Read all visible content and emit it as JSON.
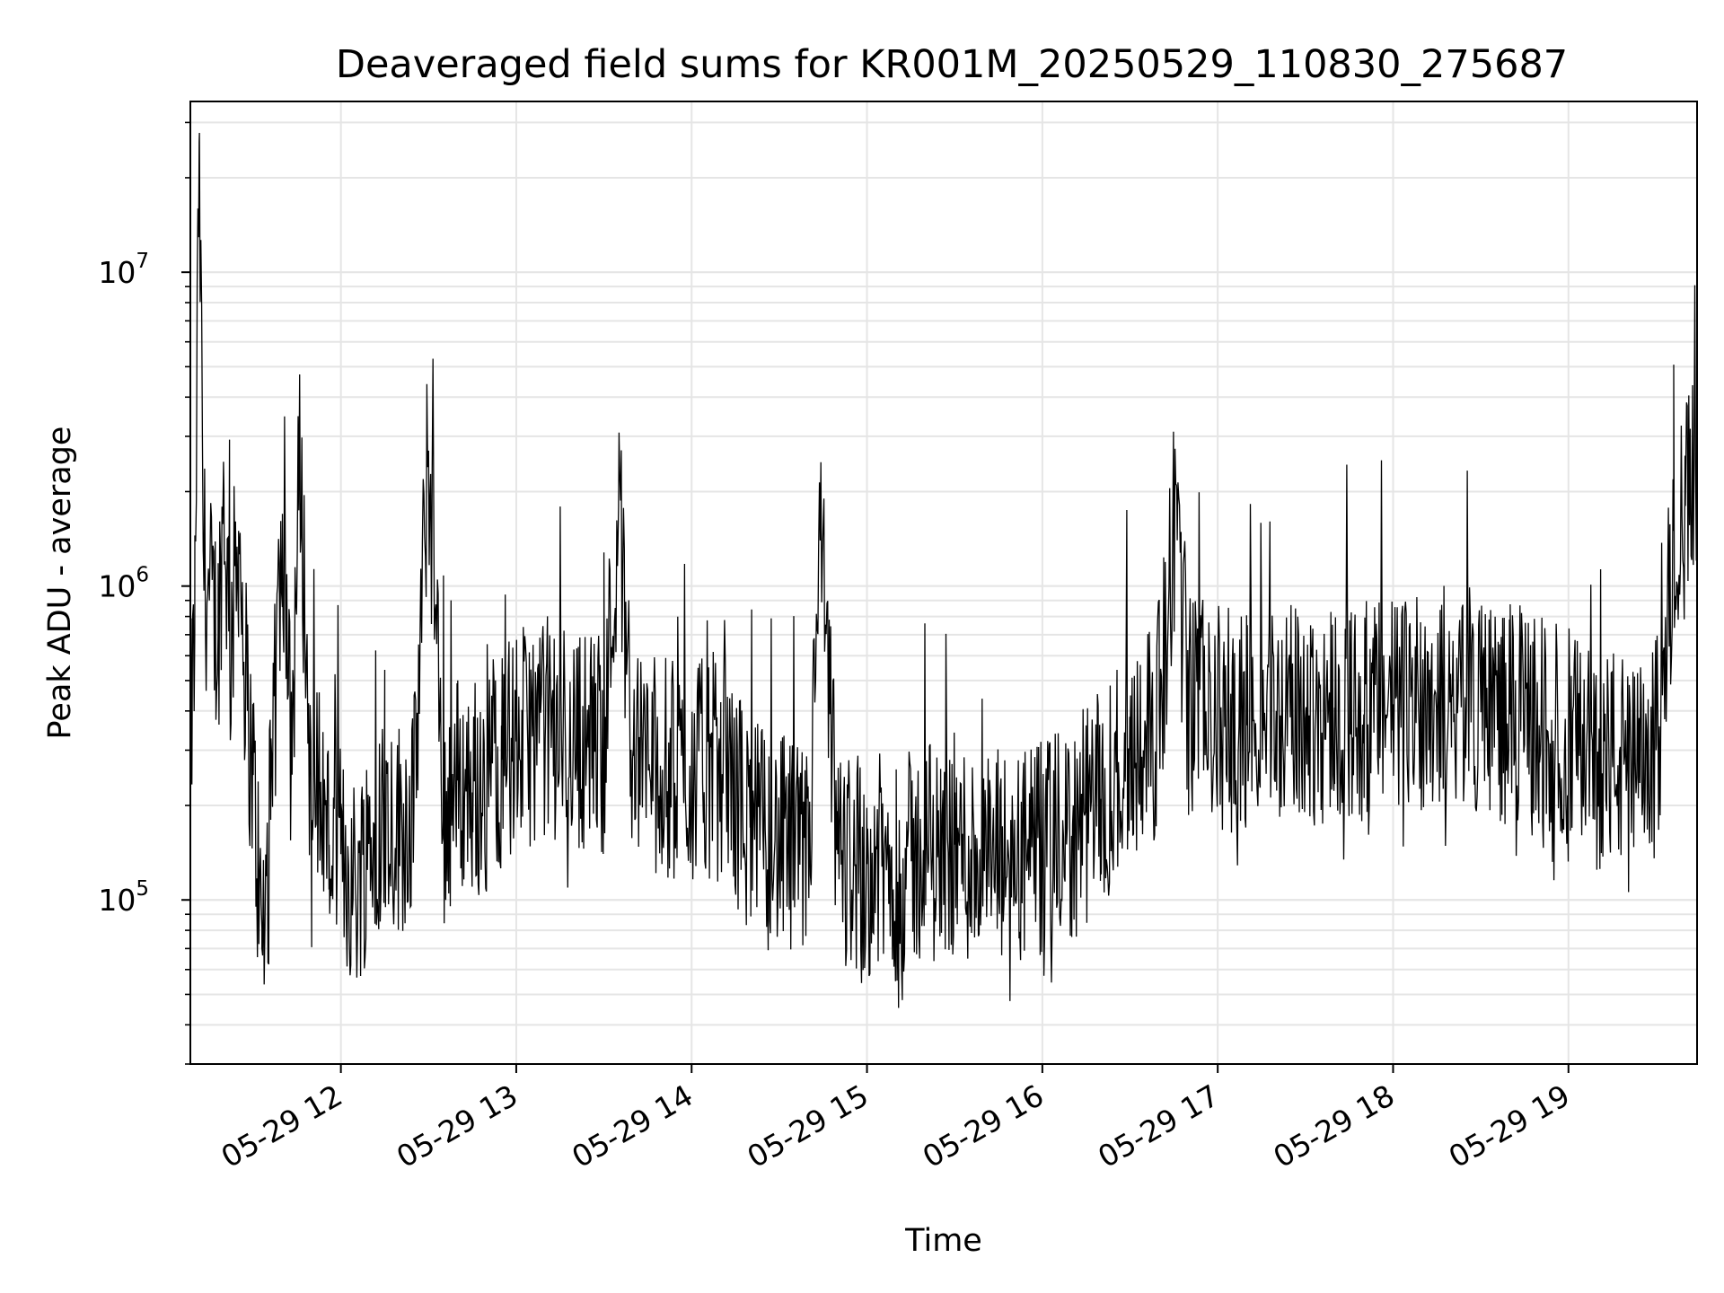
{
  "chart_data": {
    "type": "line",
    "title": "Deaveraged field sums for KR001M_20250529_110830_275687",
    "xlabel": "Time",
    "ylabel": "Peak ADU - average",
    "yscale": "log",
    "ylim": [
      30000,
      35000000
    ],
    "xlim": [
      "2025-05-29T11:08:30",
      "2025-05-29T19:44:00"
    ],
    "grid": "on",
    "line_color": "#000000",
    "grid_color": "#e5e5e5",
    "x_ticks": [
      {
        "value": "2025-05-29T12:00:00",
        "label": "05-29 12"
      },
      {
        "value": "2025-05-29T13:00:00",
        "label": "05-29 13"
      },
      {
        "value": "2025-05-29T14:00:00",
        "label": "05-29 14"
      },
      {
        "value": "2025-05-29T15:00:00",
        "label": "05-29 15"
      },
      {
        "value": "2025-05-29T16:00:00",
        "label": "05-29 16"
      },
      {
        "value": "2025-05-29T17:00:00",
        "label": "05-29 17"
      },
      {
        "value": "2025-05-29T18:00:00",
        "label": "05-29 18"
      },
      {
        "value": "2025-05-29T19:00:00",
        "label": "05-29 19"
      }
    ],
    "y_ticks": [
      {
        "value": 100000,
        "base": "10",
        "exp": "5"
      },
      {
        "value": 1000000,
        "base": "10",
        "exp": "6"
      },
      {
        "value": 10000000,
        "base": "10",
        "exp": "7"
      }
    ],
    "series": [
      {
        "x": [
          "2025-05-29T11:08:30",
          "2025-05-29T11:10:00",
          "2025-05-29T11:11:30",
          "2025-05-29T11:13:00",
          "2025-05-29T11:15:00",
          "2025-05-29T11:18:00",
          "2025-05-29T11:20:00",
          "2025-05-29T11:22:00",
          "2025-05-29T11:25:00",
          "2025-05-29T11:28:00",
          "2025-05-29T11:30:00",
          "2025-05-29T11:33:00",
          "2025-05-29T11:36:00",
          "2025-05-29T11:40:00",
          "2025-05-29T11:43:00",
          "2025-05-29T11:46:00",
          "2025-05-29T11:50:00",
          "2025-05-29T11:52:00",
          "2025-05-29T11:56:00",
          "2025-05-29T12:00:00",
          "2025-05-29T12:05:00",
          "2025-05-29T12:10:00",
          "2025-05-29T12:15:00",
          "2025-05-29T12:20:00",
          "2025-05-29T12:25:00",
          "2025-05-29T12:30:00",
          "2025-05-29T12:35:00",
          "2025-05-29T12:40:00",
          "2025-05-29T12:45:00",
          "2025-05-29T12:50:00",
          "2025-05-29T12:55:00",
          "2025-05-29T13:00:00",
          "2025-05-29T13:10:00",
          "2025-05-29T13:20:00",
          "2025-05-29T13:30:00",
          "2025-05-29T13:35:00",
          "2025-05-29T13:40:00",
          "2025-05-29T13:50:00",
          "2025-05-29T14:00:00",
          "2025-05-29T14:10:00",
          "2025-05-29T14:20:00",
          "2025-05-29T14:30:00",
          "2025-05-29T14:40:00",
          "2025-05-29T14:44:00",
          "2025-05-29T14:50:00",
          "2025-05-29T15:00:00",
          "2025-05-29T15:10:00",
          "2025-05-29T15:20:00",
          "2025-05-29T15:30:00",
          "2025-05-29T15:40:00",
          "2025-05-29T15:50:00",
          "2025-05-29T16:00:00",
          "2025-05-29T16:10:00",
          "2025-05-29T16:20:00",
          "2025-05-29T16:30:00",
          "2025-05-29T16:40:00",
          "2025-05-29T16:46:00",
          "2025-05-29T16:50:00",
          "2025-05-29T17:00:00",
          "2025-05-29T17:10:00",
          "2025-05-29T17:20:00",
          "2025-05-29T17:30:00",
          "2025-05-29T17:40:00",
          "2025-05-29T17:50:00",
          "2025-05-29T18:00:00",
          "2025-05-29T18:10:00",
          "2025-05-29T18:20:00",
          "2025-05-29T18:30:00",
          "2025-05-29T18:40:00",
          "2025-05-29T18:50:00",
          "2025-05-29T19:00:00",
          "2025-05-29T19:10:00",
          "2025-05-29T19:15:00",
          "2025-05-29T19:20:00",
          "2025-05-29T19:25:00",
          "2025-05-29T19:30:00",
          "2025-05-29T19:33:00",
          "2025-05-29T19:36:00",
          "2025-05-29T19:40:00",
          "2025-05-29T19:44:00"
        ],
        "y": [
          300000,
          700000,
          26000000,
          1200000,
          900000,
          700000,
          2000000,
          600000,
          1500000,
          400000,
          250000,
          70000,
          180000,
          1700000,
          280000,
          2600000,
          180000,
          250000,
          150000,
          140000,
          110000,
          160000,
          190000,
          170000,
          200000,
          2700000,
          180000,
          240000,
          220000,
          300000,
          280000,
          320000,
          360000,
          330000,
          320000,
          1800000,
          300000,
          260000,
          250000,
          280000,
          170000,
          150000,
          130000,
          1400000,
          140000,
          130000,
          125000,
          140000,
          150000,
          130000,
          135000,
          140000,
          160000,
          210000,
          300000,
          400000,
          2000000,
          420000,
          380000,
          360000,
          400000,
          380000,
          410000,
          390000,
          420000,
          440000,
          450000,
          430000,
          390000,
          360000,
          330000,
          280000,
          290000,
          260000,
          250000,
          300000,
          600000,
          1500000,
          1800000,
          2200000
        ]
      }
    ],
    "trace_amplitude_log10": 0.36,
    "trace_samples": 2000
  }
}
